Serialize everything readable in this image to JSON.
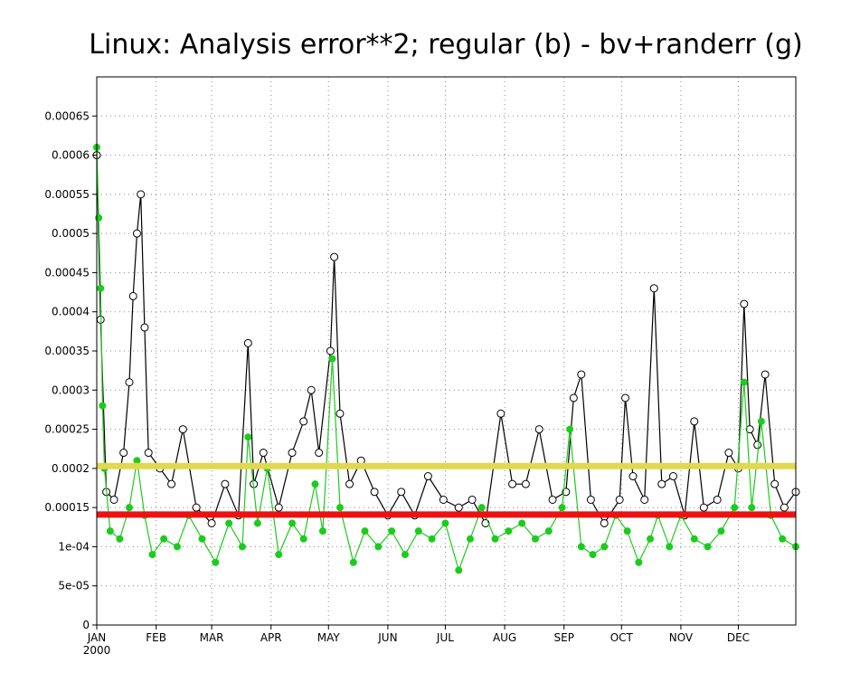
{
  "chart_data": {
    "type": "line",
    "title": "Linux: Analysis error**2; regular (b) - bv+randerr (g)",
    "x_range": [
      "2000-01-01",
      "2000-12-31"
    ],
    "xtick_labels": [
      "JAN",
      "FEB",
      "MAR",
      "APR",
      "MAY",
      "JUN",
      "JUL",
      "AUG",
      "SEP",
      "OCT",
      "NOV",
      "DEC"
    ],
    "xtick_dates": [
      "2000-01-01",
      "2000-02-01",
      "2000-03-01",
      "2000-04-01",
      "2000-05-01",
      "2000-06-01",
      "2000-07-01",
      "2000-08-01",
      "2000-09-01",
      "2000-10-01",
      "2000-11-01",
      "2000-12-01"
    ],
    "x_year_label": "2000",
    "ylim": [
      0,
      0.0007
    ],
    "yticks": [
      0,
      5e-05,
      0.0001,
      0.00015,
      0.0002,
      0.00025,
      0.0003,
      0.00035,
      0.0004,
      0.00045,
      0.0005,
      0.00055,
      0.0006,
      0.00065
    ],
    "ytick_labels": [
      "0",
      "5e-05",
      "1e-04",
      "0.00015",
      "0.0002",
      "0.00025",
      "0.0003",
      "0.00035",
      "0.0004",
      "0.00045",
      "0.0005",
      "0.00055",
      "0.0006",
      "0.00065"
    ],
    "grid": true,
    "series": [
      {
        "color": "#000000",
        "marker": "open-circle",
        "points": [
          [
            "2000-01-01",
            0.0006
          ],
          [
            "2000-01-03",
            0.00039
          ],
          [
            "2000-01-06",
            0.00017
          ],
          [
            "2000-01-10",
            0.00016
          ],
          [
            "2000-01-15",
            0.00022
          ],
          [
            "2000-01-18",
            0.00031
          ],
          [
            "2000-01-20",
            0.00042
          ],
          [
            "2000-01-22",
            0.0005
          ],
          [
            "2000-01-24",
            0.00055
          ],
          [
            "2000-01-26",
            0.00038
          ],
          [
            "2000-01-28",
            0.00022
          ],
          [
            "2000-02-03",
            0.0002
          ],
          [
            "2000-02-09",
            0.00018
          ],
          [
            "2000-02-15",
            0.00025
          ],
          [
            "2000-02-22",
            0.00015
          ],
          [
            "2000-03-01",
            0.00013
          ],
          [
            "2000-03-08",
            0.00018
          ],
          [
            "2000-03-15",
            0.00014
          ],
          [
            "2000-03-20",
            0.00036
          ],
          [
            "2000-03-23",
            0.00018
          ],
          [
            "2000-03-28",
            0.00022
          ],
          [
            "2000-04-05",
            0.00015
          ],
          [
            "2000-04-12",
            0.00022
          ],
          [
            "2000-04-18",
            0.00026
          ],
          [
            "2000-04-22",
            0.0003
          ],
          [
            "2000-04-26",
            0.00022
          ],
          [
            "2000-05-02",
            0.00035
          ],
          [
            "2000-05-04",
            0.00047
          ],
          [
            "2000-05-07",
            0.00027
          ],
          [
            "2000-05-12",
            0.00018
          ],
          [
            "2000-05-18",
            0.00021
          ],
          [
            "2000-05-25",
            0.00017
          ],
          [
            "2000-06-01",
            0.00014
          ],
          [
            "2000-06-08",
            0.00017
          ],
          [
            "2000-06-15",
            0.00014
          ],
          [
            "2000-06-22",
            0.00019
          ],
          [
            "2000-06-30",
            0.00016
          ],
          [
            "2000-07-08",
            0.00015
          ],
          [
            "2000-07-15",
            0.00016
          ],
          [
            "2000-07-22",
            0.00013
          ],
          [
            "2000-07-30",
            0.00027
          ],
          [
            "2000-08-05",
            0.00018
          ],
          [
            "2000-08-12",
            0.00018
          ],
          [
            "2000-08-19",
            0.00025
          ],
          [
            "2000-08-26",
            0.00016
          ],
          [
            "2000-09-02",
            0.00017
          ],
          [
            "2000-09-06",
            0.00029
          ],
          [
            "2000-09-10",
            0.00032
          ],
          [
            "2000-09-15",
            0.00016
          ],
          [
            "2000-09-22",
            0.00013
          ],
          [
            "2000-09-30",
            0.00016
          ],
          [
            "2000-10-03",
            0.00029
          ],
          [
            "2000-10-07",
            0.00019
          ],
          [
            "2000-10-13",
            0.00016
          ],
          [
            "2000-10-18",
            0.00043
          ],
          [
            "2000-10-22",
            0.00018
          ],
          [
            "2000-10-28",
            0.00019
          ],
          [
            "2000-11-03",
            0.00014
          ],
          [
            "2000-11-08",
            0.00026
          ],
          [
            "2000-11-13",
            0.00015
          ],
          [
            "2000-11-20",
            0.00016
          ],
          [
            "2000-11-26",
            0.00022
          ],
          [
            "2000-12-01",
            0.0002
          ],
          [
            "2000-12-04",
            0.00041
          ],
          [
            "2000-12-07",
            0.00025
          ],
          [
            "2000-12-11",
            0.00023
          ],
          [
            "2000-12-15",
            0.00032
          ],
          [
            "2000-12-20",
            0.00018
          ],
          [
            "2000-12-25",
            0.00015
          ],
          [
            "2000-12-31",
            0.00017
          ]
        ]
      },
      {
        "color": "#1ccc1c",
        "marker": "filled-circle",
        "points": [
          [
            "2000-01-01",
            0.00061
          ],
          [
            "2000-01-02",
            0.00052
          ],
          [
            "2000-01-03",
            0.00043
          ],
          [
            "2000-01-04",
            0.00028
          ],
          [
            "2000-01-05",
            0.0002
          ],
          [
            "2000-01-08",
            0.00012
          ],
          [
            "2000-01-13",
            0.00011
          ],
          [
            "2000-01-18",
            0.00015
          ],
          [
            "2000-01-22",
            0.00021
          ],
          [
            "2000-01-26",
            0.00014
          ],
          [
            "2000-01-30",
            9e-05
          ],
          [
            "2000-02-05",
            0.00011
          ],
          [
            "2000-02-12",
            0.0001
          ],
          [
            "2000-02-18",
            0.00014
          ],
          [
            "2000-02-25",
            0.00011
          ],
          [
            "2000-03-03",
            8e-05
          ],
          [
            "2000-03-10",
            0.00013
          ],
          [
            "2000-03-17",
            0.0001
          ],
          [
            "2000-03-20",
            0.00024
          ],
          [
            "2000-03-25",
            0.00013
          ],
          [
            "2000-03-30",
            0.0002
          ],
          [
            "2000-04-05",
            9e-05
          ],
          [
            "2000-04-12",
            0.00013
          ],
          [
            "2000-04-18",
            0.00011
          ],
          [
            "2000-04-24",
            0.00018
          ],
          [
            "2000-04-28",
            0.00012
          ],
          [
            "2000-05-03",
            0.00034
          ],
          [
            "2000-05-07",
            0.00015
          ],
          [
            "2000-05-14",
            8e-05
          ],
          [
            "2000-05-20",
            0.00012
          ],
          [
            "2000-05-27",
            0.0001
          ],
          [
            "2000-06-03",
            0.00012
          ],
          [
            "2000-06-10",
            9e-05
          ],
          [
            "2000-06-17",
            0.00012
          ],
          [
            "2000-06-24",
            0.00011
          ],
          [
            "2000-07-01",
            0.00013
          ],
          [
            "2000-07-08",
            7e-05
          ],
          [
            "2000-07-14",
            0.00011
          ],
          [
            "2000-07-20",
            0.00015
          ],
          [
            "2000-07-27",
            0.00011
          ],
          [
            "2000-08-03",
            0.00012
          ],
          [
            "2000-08-10",
            0.00013
          ],
          [
            "2000-08-17",
            0.00011
          ],
          [
            "2000-08-24",
            0.00012
          ],
          [
            "2000-08-31",
            0.00015
          ],
          [
            "2000-09-04",
            0.00025
          ],
          [
            "2000-09-10",
            0.0001
          ],
          [
            "2000-09-16",
            9e-05
          ],
          [
            "2000-09-22",
            0.0001
          ],
          [
            "2000-09-28",
            0.00014
          ],
          [
            "2000-10-04",
            0.00012
          ],
          [
            "2000-10-10",
            8e-05
          ],
          [
            "2000-10-16",
            0.00011
          ],
          [
            "2000-10-20",
            0.00014
          ],
          [
            "2000-10-26",
            0.0001
          ],
          [
            "2000-11-01",
            0.00014
          ],
          [
            "2000-11-08",
            0.00011
          ],
          [
            "2000-11-15",
            0.0001
          ],
          [
            "2000-11-22",
            0.00012
          ],
          [
            "2000-11-29",
            0.00015
          ],
          [
            "2000-12-04",
            0.00031
          ],
          [
            "2000-12-08",
            0.00015
          ],
          [
            "2000-12-13",
            0.00026
          ],
          [
            "2000-12-18",
            0.00014
          ],
          [
            "2000-12-24",
            0.00011
          ],
          [
            "2000-12-31",
            0.0001
          ]
        ]
      }
    ],
    "reference_lines": [
      {
        "value": 0.000203,
        "color": "#e0d850"
      },
      {
        "value": 0.000141,
        "color": "#ee1111"
      }
    ]
  }
}
